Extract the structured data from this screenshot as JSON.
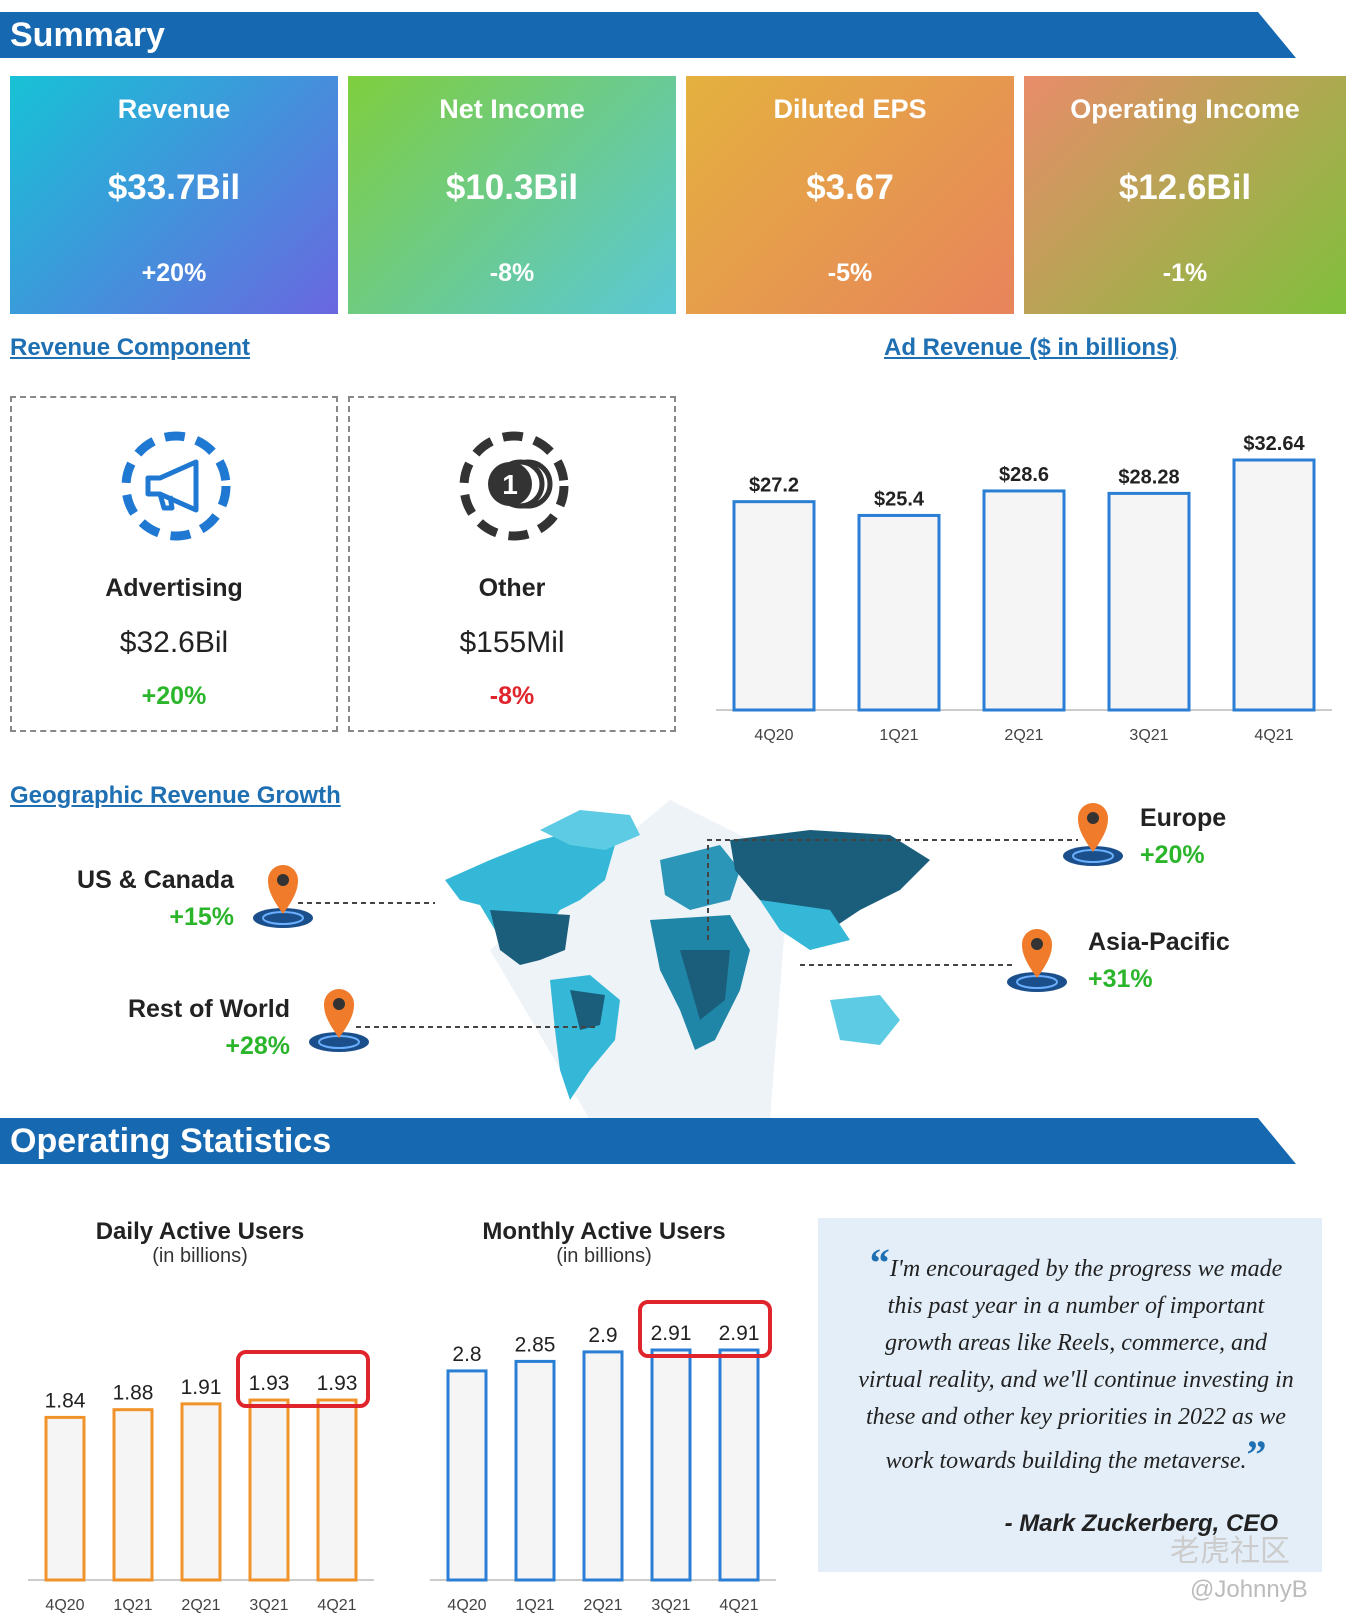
{
  "summary": {
    "title": "Summary",
    "cards": [
      {
        "label": "Revenue",
        "value": "$33.7Bil",
        "change": "+20%",
        "colors": [
          "#17c2d6",
          "#6a67e0"
        ]
      },
      {
        "label": "Net Income",
        "value": "$10.3Bil",
        "change": "-8%",
        "colors": [
          "#7fce3e",
          "#5ac8d8"
        ]
      },
      {
        "label": "Diluted EPS",
        "value": "$3.67",
        "change": "-5%",
        "colors": [
          "#e4b13e",
          "#e8845c"
        ]
      },
      {
        "label": "Operating Income",
        "value": "$12.6Bil",
        "change": "-1%",
        "colors": [
          "#e98c6a",
          "#7fc03c"
        ]
      }
    ]
  },
  "revenue_component": {
    "title": "Revenue Component",
    "items": [
      {
        "icon": "megaphone-icon",
        "name": "Advertising",
        "amount": "$32.6Bil",
        "change": "+20%"
      },
      {
        "icon": "coins-icon",
        "name": "Other",
        "amount": "$155Mil",
        "change": "-8%"
      }
    ]
  },
  "geo": {
    "title": "Geographic Revenue Growth",
    "regions": [
      {
        "name": "US & Canada",
        "change": "+15%"
      },
      {
        "name": "Rest of World",
        "change": "+28%"
      },
      {
        "name": "Europe",
        "change": "+20%"
      },
      {
        "name": "Asia-Pacific",
        "change": "+31%"
      }
    ]
  },
  "ops": {
    "title": "Operating Statistics",
    "dau_title": "Daily Active Users",
    "dau_sub": "(in billions)",
    "mau_title": "Monthly Active Users",
    "mau_sub": "(in billions)"
  },
  "quote": {
    "text": "I'm encouraged by the progress we made this past year in a number of important growth areas like Reels, commerce, and virtual reality, and we'll continue investing in these and other key priorities in 2022 as we work towards building the metaverse.",
    "author": "- Mark Zuckerberg, CEO"
  },
  "watermark": {
    "brand": "老虎社区",
    "user": "@JohnnyB"
  },
  "colors": {
    "banner": "#1668b0",
    "link": "#1f6fb3",
    "positive": "#2bb52b",
    "negative": "#e0242c",
    "bar_blue": "#2a7fd4",
    "bar_orange": "#f0932b",
    "highlight": "#e0242c"
  },
  "chart_data": [
    {
      "type": "bar",
      "title": "Ad Revenue ($ in billions)",
      "categories": [
        "4Q20",
        "1Q21",
        "2Q21",
        "3Q21",
        "4Q21"
      ],
      "values": [
        27.2,
        25.4,
        28.6,
        28.28,
        32.64
      ],
      "value_labels": [
        "$27.2",
        "$25.4",
        "$28.6",
        "$28.28",
        "$32.64"
      ],
      "color": "#2a7fd4"
    },
    {
      "type": "bar",
      "title": "Daily Active Users",
      "subtitle": "(in billions)",
      "categories": [
        "4Q20",
        "1Q21",
        "2Q21",
        "3Q21",
        "4Q21"
      ],
      "values": [
        1.84,
        1.88,
        1.91,
        1.93,
        1.93
      ],
      "value_labels": [
        "1.84",
        "1.88",
        "1.91",
        "1.93",
        "1.93"
      ],
      "highlighted": [
        "3Q21",
        "4Q21"
      ],
      "color": "#f0932b"
    },
    {
      "type": "bar",
      "title": "Monthly Active Users",
      "subtitle": "(in billions)",
      "categories": [
        "4Q20",
        "1Q21",
        "2Q21",
        "3Q21",
        "4Q21"
      ],
      "values": [
        2.8,
        2.85,
        2.9,
        2.91,
        2.91
      ],
      "value_labels": [
        "2.8",
        "2.85",
        "2.9",
        "2.91",
        "2.91"
      ],
      "highlighted": [
        "3Q21",
        "4Q21"
      ],
      "color": "#2a7fd4"
    }
  ]
}
